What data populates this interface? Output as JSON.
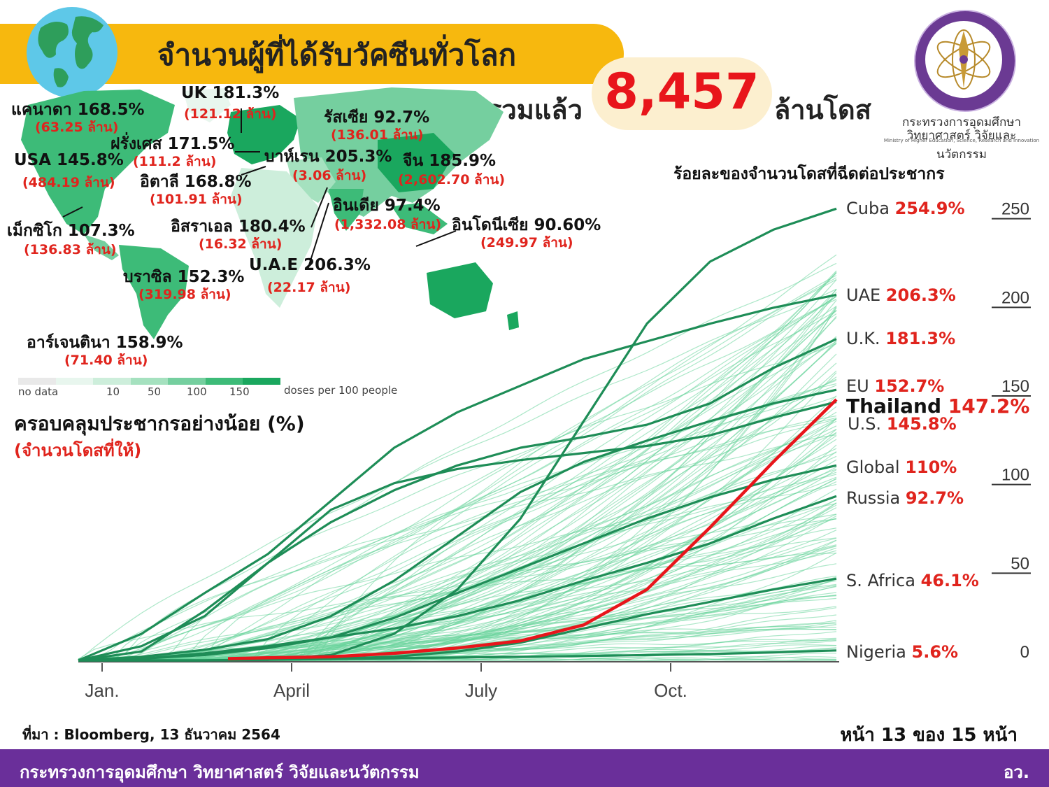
{
  "header": {
    "title": "จำนวนผู้ที่ได้รับวัคซีนทั่วโลก",
    "total_prefix": "รวมแล้ว",
    "total_value": "8,457",
    "total_suffix": "ล้านโดส",
    "globe_icon": "globe-icon"
  },
  "org": {
    "logo_icon": "ministry-seal-icon",
    "name_th_line1": "กระทรวงการอุดมศึกษา",
    "name_th_line2": "วิทยาศาสตร์ วิจัยและนวัตกรรม",
    "name_en": "Ministry of Higher Education, Science, Research and Innovation"
  },
  "map": {
    "countries": [
      {
        "name": "แคนาดา 168.5%",
        "doses": "(63.25 ล้าน)"
      },
      {
        "name": "UK 181.3%",
        "doses": "(121.12 ล้าน)"
      },
      {
        "name": "รัสเซีย 92.7%",
        "doses": "(136.01 ล้าน)"
      },
      {
        "name": "ฝรั่งเศส 171.5%",
        "doses": "(111.2 ล้าน)"
      },
      {
        "name": "USA 145.8%",
        "doses": "(484.19 ล้าน)"
      },
      {
        "name": "บาห์เรน 205.3%",
        "doses": "(3.06 ล้าน)"
      },
      {
        "name": "จีน 185.9%",
        "doses": "(2,602.70 ล้าน)"
      },
      {
        "name": "อิตาลี 168.8%",
        "doses": "(101.91 ล้าน)"
      },
      {
        "name": "อินเดีย 97.4%",
        "doses": "(1,332.08 ล้าน)"
      },
      {
        "name": "เม็กซิโก 107.3%",
        "doses": "(136.83 ล้าน)"
      },
      {
        "name": "อิสราเอล 180.4%",
        "doses": "(16.32 ล้าน)"
      },
      {
        "name": "อินโดนีเซีย 90.60%",
        "doses": "(249.97 ล้าน)"
      },
      {
        "name": "U.A.E 206.3%",
        "doses": "(22.17 ล้าน)"
      },
      {
        "name": "บราซิล 152.3%",
        "doses": "(319.98 ล้าน)"
      },
      {
        "name": "อาร์เจนตินา 158.9%",
        "doses": "(71.40 ล้าน)"
      }
    ],
    "scale": {
      "no_data": "no data",
      "ticks": [
        "10",
        "50",
        "100",
        "150"
      ],
      "unit": "doses per 100 people",
      "colors": [
        "#e9e9e9",
        "#e8f6ee",
        "#cdeedb",
        "#a5e1bf",
        "#75cf9f",
        "#3dbb78",
        "#1aa75e"
      ]
    },
    "caption": "ครอบคลุมประชากรอย่างน้อย (%)",
    "caption_sub": "(จำนวนโดสที่ให้)"
  },
  "chart_title": "ร้อยละของจำนวนโดสที่ฉีดต่อประชากร",
  "chart_data": {
    "type": "line",
    "ylabel": "",
    "xlabel": "",
    "x_ticks": [
      "Jan.",
      "April",
      "July",
      "Oct."
    ],
    "y_ticks": [
      0,
      50,
      100,
      150,
      200,
      250
    ],
    "ylim": [
      0,
      255
    ],
    "x_months": [
      0,
      1,
      2,
      3,
      4,
      5,
      6,
      7,
      8,
      9,
      10,
      11,
      12
    ],
    "series": [
      {
        "name": "Cuba",
        "label": "254.9%",
        "values": [
          0,
          0,
          0,
          0.3,
          3,
          15,
          40,
          80,
          135,
          190,
          225,
          243,
          254.9
        ]
      },
      {
        "name": "UAE",
        "label": "206.3%",
        "values": [
          0,
          15,
          38,
          60,
          90,
          120,
          140,
          155,
          170,
          180,
          190,
          199,
          206.3
        ]
      },
      {
        "name": "U.K.",
        "label": "181.3%",
        "values": [
          0,
          5,
          28,
          55,
          78,
          96,
          110,
          120,
          126,
          133,
          145,
          165,
          181.3
        ]
      },
      {
        "name": "EU",
        "label": "152.7%",
        "values": [
          0,
          2,
          6,
          12,
          25,
          45,
          70,
          95,
          112,
          124,
          135,
          145,
          152.7
        ]
      },
      {
        "name": "Thailand",
        "label": "147.2%",
        "values": [
          null,
          null,
          1,
          1.5,
          2,
          4,
          7,
          11,
          20,
          40,
          75,
          112,
          147.2
        ]
      },
      {
        "name": "U.S.",
        "label": "145.8%",
        "values": [
          0,
          8,
          25,
          55,
          85,
          100,
          108,
          113,
          117,
          121,
          127,
          137,
          145.8
        ]
      },
      {
        "name": "Global",
        "label": "110%",
        "values": [
          0,
          1,
          3,
          7,
          13,
          24,
          38,
          52,
          66,
          80,
          92,
          102,
          110
        ]
      },
      {
        "name": "Russia",
        "label": "92.7%",
        "values": [
          0,
          1,
          4,
          8,
          13,
          18,
          25,
          34,
          45,
          55,
          66,
          80,
          92.7
        ]
      },
      {
        "name": "S. Africa",
        "label": "46.1%",
        "values": [
          0,
          0,
          0,
          0.5,
          1,
          2,
          5,
          10,
          18,
          26,
          33,
          40,
          46.1
        ]
      },
      {
        "name": "Nigeria",
        "label": "5.6%",
        "values": [
          0,
          0,
          0,
          0.3,
          0.8,
          1.2,
          1.6,
          2,
          2.5,
          3,
          3.6,
          4.5,
          5.6
        ]
      }
    ],
    "background_series_count": 150,
    "colors": {
      "country": "#1e8d57",
      "background": "#67d39b",
      "thailand": "#e8151b"
    }
  },
  "footer": {
    "source": "ที่มา : Bloomberg, 13 ธันวาคม 2564",
    "page": "หน้า 13 ของ 15 หน้า",
    "ministry": "กระทรวงการอุดมศึกษา วิทยาศาสตร์ วิจัยและนวัตกรรม",
    "abbr": "อว."
  }
}
